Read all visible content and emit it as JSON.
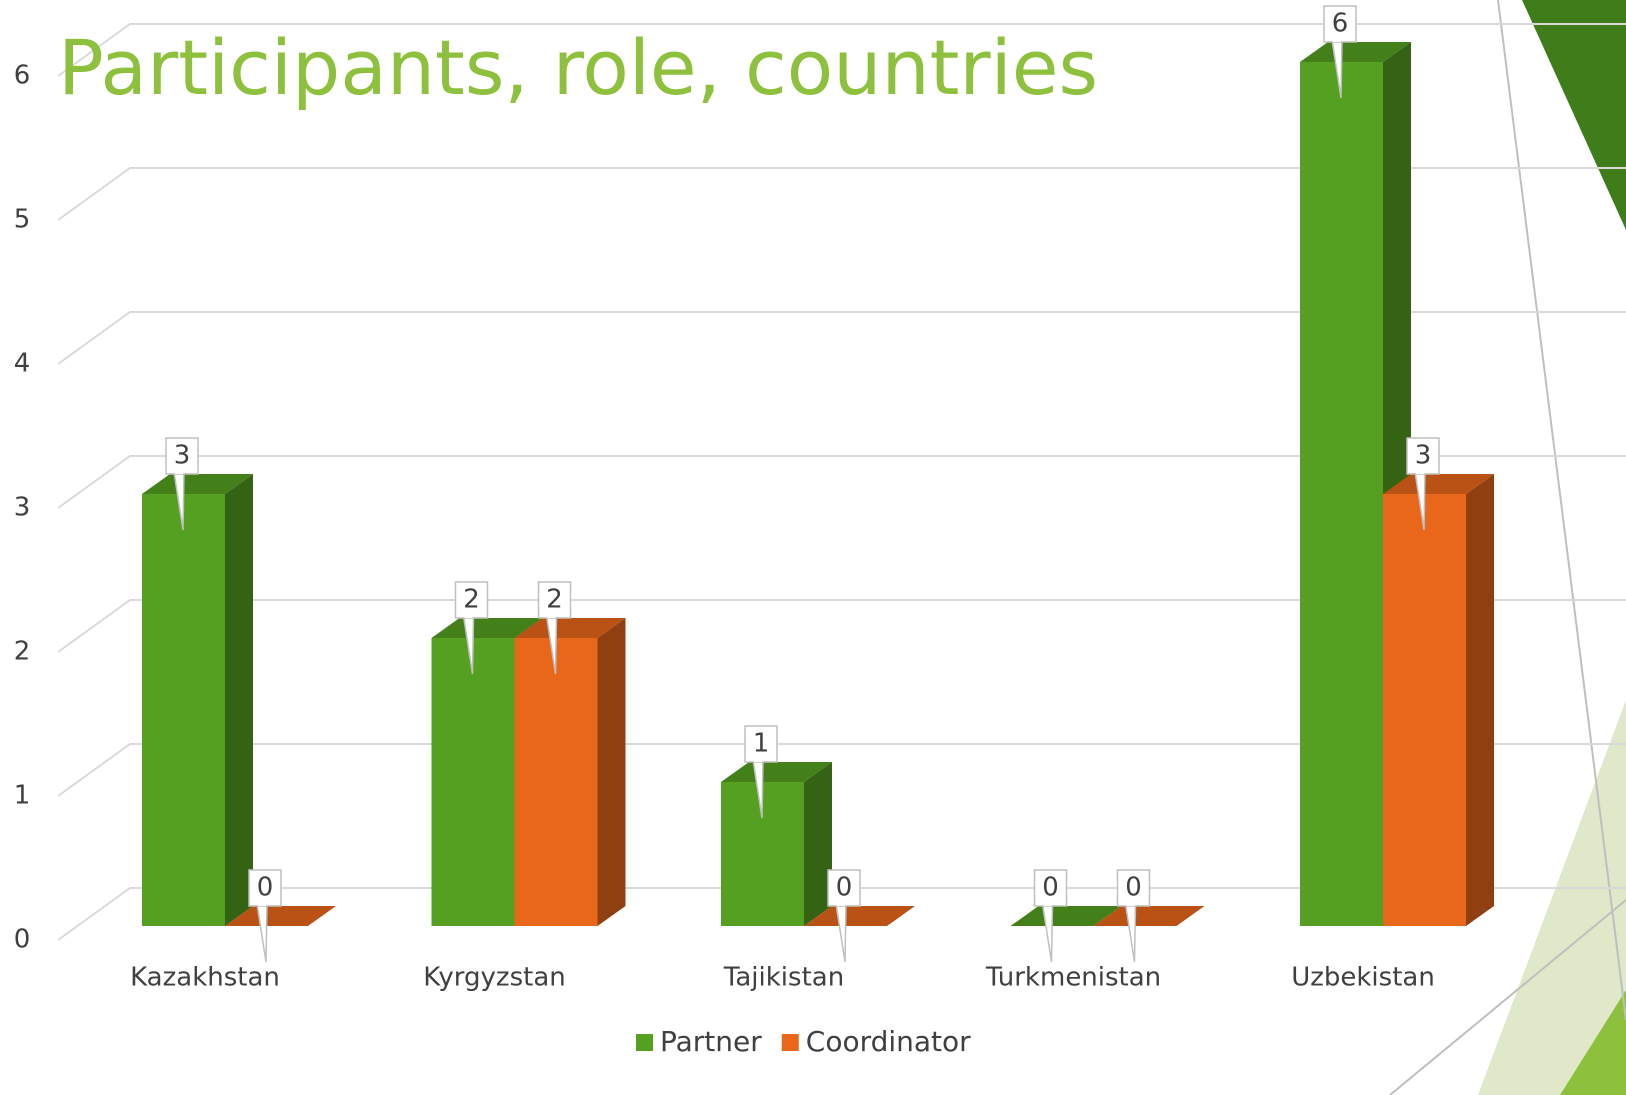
{
  "chart_data": {
    "type": "bar3d",
    "title": "Participants, role, countries",
    "categories": [
      "Kazakhstan",
      "Kyrgyzstan",
      "Tajikistan",
      "Turkmenistan",
      "Uzbekistan"
    ],
    "series": [
      {
        "name": "Partner",
        "color": "#55a020",
        "values": [
          3,
          2,
          1,
          0,
          6
        ]
      },
      {
        "name": "Coordinator",
        "color": "#e8671a",
        "values": [
          0,
          2,
          0,
          0,
          3
        ]
      }
    ],
    "ylim": [
      0,
      6
    ],
    "yticks": [
      0,
      1,
      2,
      3,
      4,
      5,
      6
    ],
    "grid": true,
    "legend": "bottom"
  }
}
